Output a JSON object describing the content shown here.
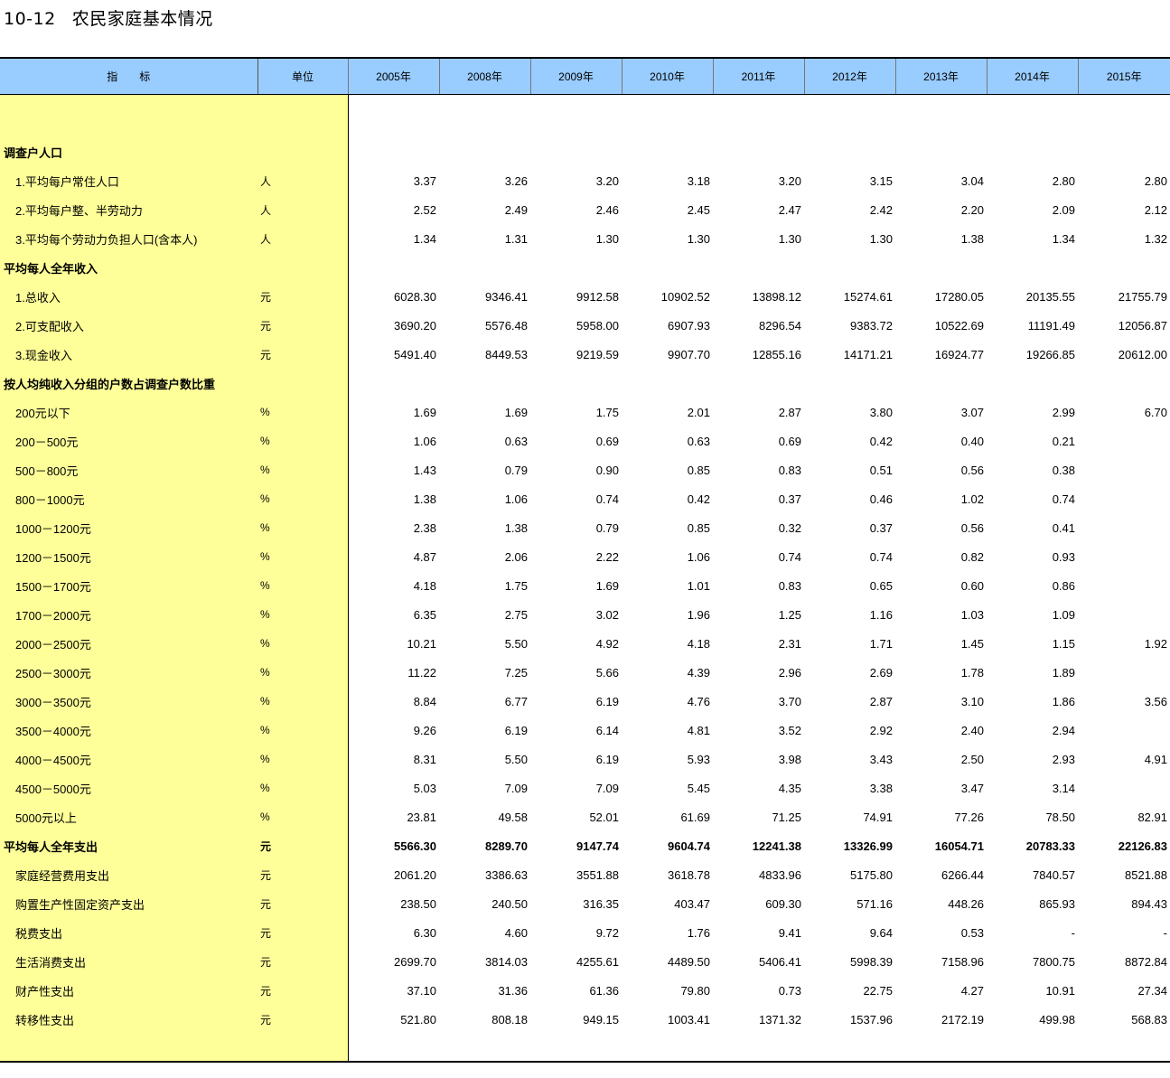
{
  "title": {
    "number": "10-12",
    "text": "农民家庭基本情况"
  },
  "header": {
    "indicator": "指　　标",
    "unit": "单位",
    "years": [
      "2005年",
      "2008年",
      "2009年",
      "2010年",
      "2011年",
      "2012年",
      "2013年",
      "2014年",
      "2015年"
    ]
  },
  "colors": {
    "header_bg": "#99ccff",
    "label_bg": "#ffff99"
  },
  "rows": [
    {
      "label": "调查户人口",
      "unit": "",
      "type": "section",
      "values": [
        "",
        "",
        "",
        "",
        "",
        "",
        "",
        "",
        ""
      ]
    },
    {
      "label": "1.平均每户常住人口",
      "unit": "人",
      "type": "item",
      "values": [
        "3.37",
        "3.26",
        "3.20",
        "3.18",
        "3.20",
        "3.15",
        "3.04",
        "2.80",
        "2.80"
      ]
    },
    {
      "label": "2.平均每户整、半劳动力",
      "unit": "人",
      "type": "item",
      "values": [
        "2.52",
        "2.49",
        "2.46",
        "2.45",
        "2.47",
        "2.42",
        "2.20",
        "2.09",
        "2.12"
      ]
    },
    {
      "label": "3.平均每个劳动力负担人口(含本人)",
      "unit": "人",
      "type": "item",
      "values": [
        "1.34",
        "1.31",
        "1.30",
        "1.30",
        "1.30",
        "1.30",
        "1.38",
        "1.34",
        "1.32"
      ]
    },
    {
      "label": "平均每人全年收入",
      "unit": "",
      "type": "section",
      "values": [
        "",
        "",
        "",
        "",
        "",
        "",
        "",
        "",
        ""
      ]
    },
    {
      "label": "1.总收入",
      "unit": "元",
      "type": "item",
      "values": [
        "6028.30",
        "9346.41",
        "9912.58",
        "10902.52",
        "13898.12",
        "15274.61",
        "17280.05",
        "20135.55",
        "21755.79"
      ]
    },
    {
      "label": "2.可支配收入",
      "unit": "元",
      "type": "item",
      "values": [
        "3690.20",
        "5576.48",
        "5958.00",
        "6907.93",
        "8296.54",
        "9383.72",
        "10522.69",
        "11191.49",
        "12056.87"
      ]
    },
    {
      "label": "3.现金收入",
      "unit": "元",
      "type": "item",
      "values": [
        "5491.40",
        "8449.53",
        "9219.59",
        "9907.70",
        "12855.16",
        "14171.21",
        "16924.77",
        "19266.85",
        "20612.00"
      ]
    },
    {
      "label": "按人均纯收入分组的户数占调查户数比重",
      "unit": "",
      "type": "section",
      "values": [
        "",
        "",
        "",
        "",
        "",
        "",
        "",
        "",
        ""
      ]
    },
    {
      "label": "200元以下",
      "unit": "%",
      "type": "item",
      "values": [
        "1.69",
        "1.69",
        "1.75",
        "2.01",
        "2.87",
        "3.80",
        "3.07",
        "2.99",
        "6.70"
      ]
    },
    {
      "label": "200－500元",
      "unit": "%",
      "type": "item",
      "values": [
        "1.06",
        "0.63",
        "0.69",
        "0.63",
        "0.69",
        "0.42",
        "0.40",
        "0.21",
        ""
      ]
    },
    {
      "label": "500－800元",
      "unit": "%",
      "type": "item",
      "values": [
        "1.43",
        "0.79",
        "0.90",
        "0.85",
        "0.83",
        "0.51",
        "0.56",
        "0.38",
        ""
      ]
    },
    {
      "label": "800－1000元",
      "unit": "%",
      "type": "item",
      "values": [
        "1.38",
        "1.06",
        "0.74",
        "0.42",
        "0.37",
        "0.46",
        "1.02",
        "0.74",
        ""
      ]
    },
    {
      "label": "1000－1200元",
      "unit": "%",
      "type": "item",
      "values": [
        "2.38",
        "1.38",
        "0.79",
        "0.85",
        "0.32",
        "0.37",
        "0.56",
        "0.41",
        ""
      ]
    },
    {
      "label": "1200－1500元",
      "unit": "%",
      "type": "item",
      "values": [
        "4.87",
        "2.06",
        "2.22",
        "1.06",
        "0.74",
        "0.74",
        "0.82",
        "0.93",
        ""
      ]
    },
    {
      "label": "1500－1700元",
      "unit": "%",
      "type": "item",
      "values": [
        "4.18",
        "1.75",
        "1.69",
        "1.01",
        "0.83",
        "0.65",
        "0.60",
        "0.86",
        ""
      ]
    },
    {
      "label": "1700－2000元",
      "unit": "%",
      "type": "item",
      "values": [
        "6.35",
        "2.75",
        "3.02",
        "1.96",
        "1.25",
        "1.16",
        "1.03",
        "1.09",
        ""
      ]
    },
    {
      "label": "2000－2500元",
      "unit": "%",
      "type": "item",
      "values": [
        "10.21",
        "5.50",
        "4.92",
        "4.18",
        "2.31",
        "1.71",
        "1.45",
        "1.15",
        "1.92"
      ]
    },
    {
      "label": "2500－3000元",
      "unit": "%",
      "type": "item",
      "values": [
        "11.22",
        "7.25",
        "5.66",
        "4.39",
        "2.96",
        "2.69",
        "1.78",
        "1.89",
        ""
      ]
    },
    {
      "label": "3000－3500元",
      "unit": "%",
      "type": "item",
      "values": [
        "8.84",
        "6.77",
        "6.19",
        "4.76",
        "3.70",
        "2.87",
        "3.10",
        "1.86",
        "3.56"
      ]
    },
    {
      "label": "3500－4000元",
      "unit": "%",
      "type": "item",
      "values": [
        "9.26",
        "6.19",
        "6.14",
        "4.81",
        "3.52",
        "2.92",
        "2.40",
        "2.94",
        ""
      ]
    },
    {
      "label": "4000－4500元",
      "unit": "%",
      "type": "item",
      "values": [
        "8.31",
        "5.50",
        "6.19",
        "5.93",
        "3.98",
        "3.43",
        "2.50",
        "2.93",
        "4.91"
      ]
    },
    {
      "label": "4500－5000元",
      "unit": "%",
      "type": "item",
      "values": [
        "5.03",
        "7.09",
        "7.09",
        "5.45",
        "4.35",
        "3.38",
        "3.47",
        "3.14",
        ""
      ]
    },
    {
      "label": "5000元以上",
      "unit": "%",
      "type": "item",
      "values": [
        "23.81",
        "49.58",
        "52.01",
        "61.69",
        "71.25",
        "74.91",
        "77.26",
        "78.50",
        "82.91"
      ]
    },
    {
      "label": "平均每人全年支出",
      "unit": "元",
      "type": "section",
      "values": [
        "5566.30",
        "8289.70",
        "9147.74",
        "9604.74",
        "12241.38",
        "13326.99",
        "16054.71",
        "20783.33",
        "22126.83"
      ]
    },
    {
      "label": "家庭经营费用支出",
      "unit": "元",
      "type": "item",
      "values": [
        "2061.20",
        "3386.63",
        "3551.88",
        "3618.78",
        "4833.96",
        "5175.80",
        "6266.44",
        "7840.57",
        "8521.88"
      ]
    },
    {
      "label": "购置生产性固定资产支出",
      "unit": "元",
      "type": "item",
      "values": [
        "238.50",
        "240.50",
        "316.35",
        "403.47",
        "609.30",
        "571.16",
        "448.26",
        "865.93",
        "894.43"
      ]
    },
    {
      "label": "税费支出",
      "unit": "元",
      "type": "item",
      "values": [
        "6.30",
        "4.60",
        "9.72",
        "1.76",
        "9.41",
        "9.64",
        "0.53",
        "-",
        "-"
      ]
    },
    {
      "label": "生活消费支出",
      "unit": "元",
      "type": "item",
      "values": [
        "2699.70",
        "3814.03",
        "4255.61",
        "4489.50",
        "5406.41",
        "5998.39",
        "7158.96",
        "7800.75",
        "8872.84"
      ]
    },
    {
      "label": "财产性支出",
      "unit": "元",
      "type": "item",
      "values": [
        "37.10",
        "31.36",
        "61.36",
        "79.80",
        "0.73",
        "22.75",
        "4.27",
        "10.91",
        "27.34"
      ]
    },
    {
      "label": "转移性支出",
      "unit": "元",
      "type": "item",
      "values": [
        "521.80",
        "808.18",
        "949.15",
        "1003.41",
        "1371.32",
        "1537.96",
        "2172.19",
        "499.98",
        "568.83"
      ]
    }
  ]
}
